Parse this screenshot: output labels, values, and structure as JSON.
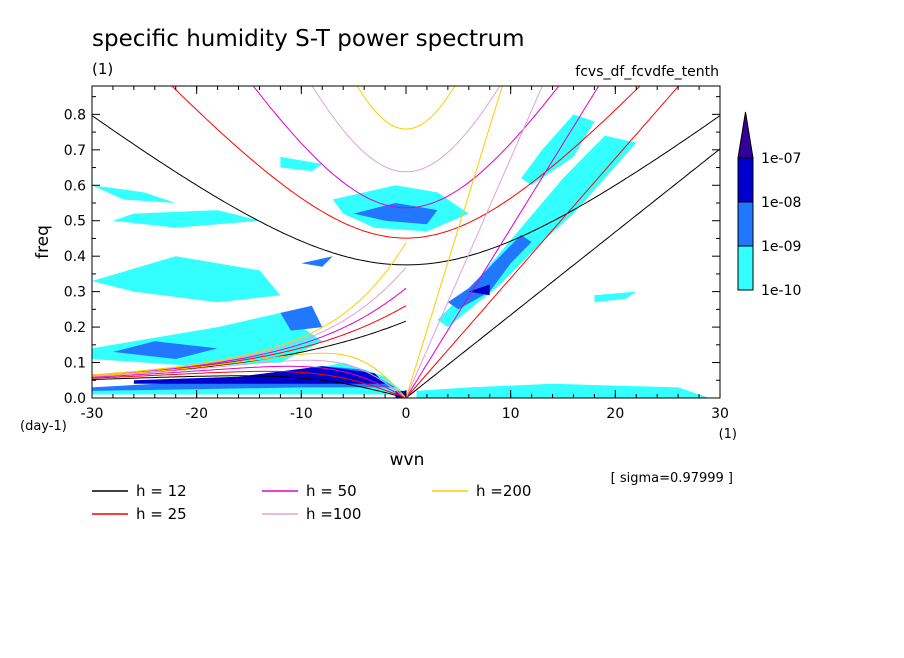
{
  "chart_data": {
    "type": "heatmap",
    "title": "specific humidity S-T power spectrum",
    "subtitle_left": "(1)",
    "subtitle_right": "fcvs_df_fcvdfe_tenth",
    "xlabel": "wvn",
    "ylabel": "freq",
    "x_unit": "(1)",
    "y_unit": "(day-1)",
    "xlim": [
      -30,
      30
    ],
    "ylim": [
      0,
      0.88
    ],
    "x_ticks": [
      -30,
      -20,
      -10,
      0,
      10,
      20,
      30
    ],
    "x_tick_labels": [
      "-30",
      "-20",
      "-10",
      "0",
      "10",
      "20",
      "30"
    ],
    "y_ticks": [
      0.0,
      0.1,
      0.2,
      0.3,
      0.4,
      0.5,
      0.6,
      0.7,
      0.8
    ],
    "y_tick_labels": [
      "0.0",
      "0.1",
      "0.2",
      "0.3",
      "0.4",
      "0.5",
      "0.6",
      "0.7",
      "0.8"
    ],
    "annotation": "[ sigma=0.97999 ]",
    "colorbar": {
      "labels": [
        "1e-10",
        "1e-09",
        "1e-08",
        "1e-07"
      ],
      "colors": [
        "#33ffff",
        "#2277ff",
        "#0000cc",
        "#330099"
      ]
    },
    "dispersion_curves": [
      {
        "label": "h = 12",
        "h": 12,
        "color": "#000000"
      },
      {
        "label": "h = 25",
        "h": 25,
        "color": "#ff0000"
      },
      {
        "label": "h = 50",
        "h": 50,
        "color": "#e000c8"
      },
      {
        "label": "h =100",
        "h": 100,
        "color": "#e0a0e0"
      },
      {
        "label": "h =200",
        "h": 200,
        "color": "#ffcc00"
      }
    ],
    "shaded_regions": [
      {
        "level": 0,
        "points": [
          [
            -30,
            0.02
          ],
          [
            -22,
            0.03
          ],
          [
            -12,
            0.06
          ],
          [
            -6,
            0.1
          ],
          [
            -2,
            0.06
          ],
          [
            0,
            0.01
          ],
          [
            -30,
            0.01
          ]
        ]
      },
      {
        "level": 0,
        "points": [
          [
            -30,
            0.11
          ],
          [
            -20,
            0.09
          ],
          [
            -12,
            0.1
          ],
          [
            -8,
            0.16
          ],
          [
            -12,
            0.24
          ],
          [
            -18,
            0.2
          ],
          [
            -26,
            0.16
          ],
          [
            -30,
            0.14
          ]
        ]
      },
      {
        "level": 0,
        "points": [
          [
            -30,
            0.33
          ],
          [
            -22,
            0.4
          ],
          [
            -14,
            0.36
          ],
          [
            -12,
            0.29
          ],
          [
            -18,
            0.27
          ],
          [
            -26,
            0.3
          ]
        ]
      },
      {
        "level": 0,
        "points": [
          [
            -30,
            0.6
          ],
          [
            -25,
            0.58
          ],
          [
            -22,
            0.55
          ],
          [
            -27,
            0.56
          ]
        ]
      },
      {
        "level": 0,
        "points": [
          [
            -26,
            0.52
          ],
          [
            -18,
            0.53
          ],
          [
            -14,
            0.5
          ],
          [
            -22,
            0.48
          ],
          [
            -28,
            0.5
          ]
        ]
      },
      {
        "level": 0,
        "points": [
          [
            -12,
            0.68
          ],
          [
            -8,
            0.66
          ],
          [
            -9,
            0.64
          ],
          [
            -12,
            0.65
          ]
        ]
      },
      {
        "level": 0,
        "points": [
          [
            -7,
            0.56
          ],
          [
            -1,
            0.6
          ],
          [
            3,
            0.58
          ],
          [
            6,
            0.52
          ],
          [
            2,
            0.47
          ],
          [
            -3,
            0.48
          ],
          [
            -6,
            0.52
          ]
        ]
      },
      {
        "level": 0,
        "points": [
          [
            4,
            0.2
          ],
          [
            9,
            0.32
          ],
          [
            13,
            0.44
          ],
          [
            16,
            0.52
          ],
          [
            19,
            0.62
          ],
          [
            22,
            0.72
          ],
          [
            19,
            0.74
          ],
          [
            15,
            0.62
          ],
          [
            11,
            0.48
          ],
          [
            7,
            0.34
          ],
          [
            3,
            0.22
          ]
        ]
      },
      {
        "level": 0,
        "points": [
          [
            12,
            0.6
          ],
          [
            16,
            0.68
          ],
          [
            18,
            0.78
          ],
          [
            16,
            0.8
          ],
          [
            13,
            0.7
          ],
          [
            11,
            0.62
          ]
        ]
      },
      {
        "level": 0,
        "points": [
          [
            1,
            0.0
          ],
          [
            29,
            0.0
          ],
          [
            26,
            0.03
          ],
          [
            14,
            0.04
          ],
          [
            6,
            0.03
          ],
          [
            1,
            0.02
          ]
        ]
      },
      {
        "level": 0,
        "points": [
          [
            18,
            0.29
          ],
          [
            22,
            0.3
          ],
          [
            21,
            0.28
          ],
          [
            18,
            0.27
          ]
        ]
      },
      {
        "level": 1,
        "points": [
          [
            -30,
            0.03
          ],
          [
            -18,
            0.05
          ],
          [
            -8,
            0.09
          ],
          [
            -4,
            0.08
          ],
          [
            -1,
            0.03
          ],
          [
            -10,
            0.03
          ],
          [
            -30,
            0.02
          ]
        ]
      },
      {
        "level": 1,
        "points": [
          [
            -28,
            0.13
          ],
          [
            -22,
            0.11
          ],
          [
            -18,
            0.14
          ],
          [
            -24,
            0.16
          ]
        ]
      },
      {
        "level": 1,
        "points": [
          [
            -12,
            0.24
          ],
          [
            -9,
            0.26
          ],
          [
            -8,
            0.2
          ],
          [
            -11,
            0.19
          ]
        ]
      },
      {
        "level": 1,
        "points": [
          [
            -5,
            0.52
          ],
          [
            -1,
            0.55
          ],
          [
            3,
            0.53
          ],
          [
            2,
            0.49
          ],
          [
            -2,
            0.5
          ]
        ]
      },
      {
        "level": 1,
        "points": [
          [
            5,
            0.25
          ],
          [
            8,
            0.3
          ],
          [
            10,
            0.38
          ],
          [
            12,
            0.44
          ],
          [
            11,
            0.46
          ],
          [
            9,
            0.4
          ],
          [
            6,
            0.31
          ],
          [
            4,
            0.27
          ]
        ]
      },
      {
        "level": 1,
        "points": [
          [
            -10,
            0.38
          ],
          [
            -7,
            0.4
          ],
          [
            -8,
            0.37
          ]
        ]
      },
      {
        "level": 2,
        "points": [
          [
            -26,
            0.05
          ],
          [
            -16,
            0.06
          ],
          [
            -8,
            0.09
          ],
          [
            -3,
            0.07
          ],
          [
            -2,
            0.04
          ],
          [
            -14,
            0.04
          ],
          [
            -26,
            0.04
          ]
        ]
      },
      {
        "level": 2,
        "points": [
          [
            -1,
            0.02
          ],
          [
            0,
            0.02
          ],
          [
            0,
            0.0
          ],
          [
            -1,
            0.0
          ]
        ]
      },
      {
        "level": 2,
        "points": [
          [
            6,
            0.3
          ],
          [
            8,
            0.32
          ],
          [
            8,
            0.29
          ]
        ]
      }
    ],
    "legend_placement": "bottom",
    "grid": false
  }
}
